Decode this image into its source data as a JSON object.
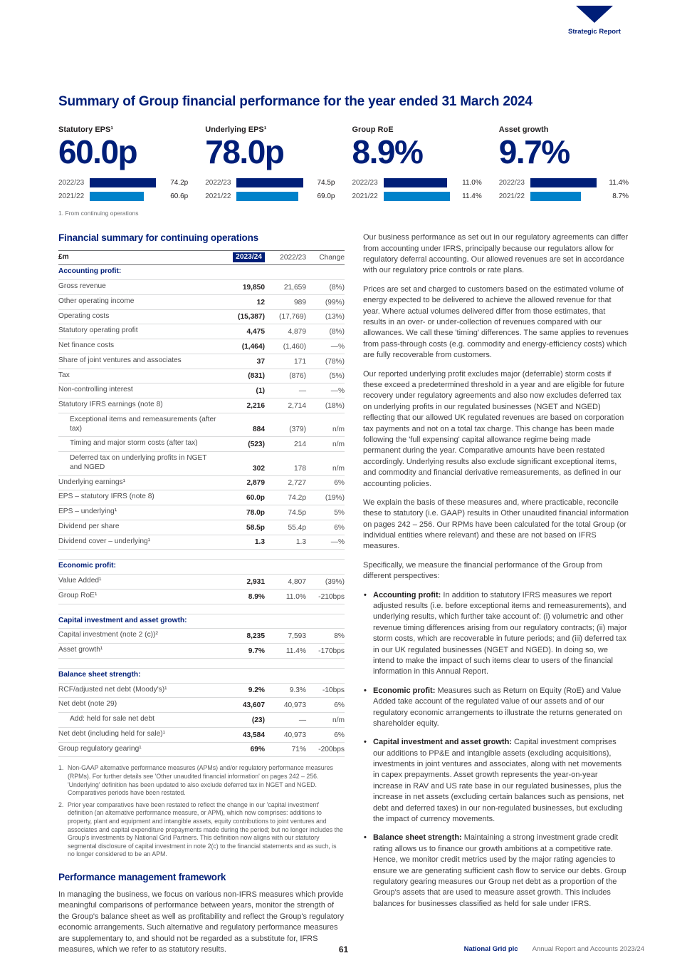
{
  "colors": {
    "navy": "#001e78",
    "bright_blue": "#0082ca",
    "body_text": "#3f3f41"
  },
  "brand": {
    "section": "Strategic Report"
  },
  "title": "Summary of Group financial performance for the year ended 31 March 2024",
  "kpis": [
    {
      "label": "Statutory EPS¹",
      "value": "60.0p",
      "bars": [
        {
          "year": "2022/23",
          "value": "74.2p",
          "pct": 100
        },
        {
          "year": "2021/22",
          "value": "60.6p",
          "pct": 82
        }
      ]
    },
    {
      "label": "Underlying EPS¹",
      "value": "78.0p",
      "bars": [
        {
          "year": "2022/23",
          "value": "74.5p",
          "pct": 100
        },
        {
          "year": "2021/22",
          "value": "69.0p",
          "pct": 93
        }
      ]
    },
    {
      "label": "Group RoE",
      "value": "8.9%",
      "bars": [
        {
          "year": "2022/23",
          "value": "11.0%",
          "pct": 96
        },
        {
          "year": "2021/22",
          "value": "11.4%",
          "pct": 100
        }
      ]
    },
    {
      "label": "Asset growth",
      "value": "9.7%",
      "bars": [
        {
          "year": "2022/23",
          "value": "11.4%",
          "pct": 100
        },
        {
          "year": "2021/22",
          "value": "8.7%",
          "pct": 76
        }
      ]
    }
  ],
  "kpi_footnote": "1.  From continuing operations",
  "table": {
    "heading": "Financial summary for continuing operations",
    "columns": {
      "unit": "£m",
      "c1": "2023/24",
      "c2": "2022/23",
      "c3": "Change"
    },
    "rows": [
      {
        "type": "section",
        "label": "Accounting profit:",
        "v1": "",
        "v2": "",
        "chg": ""
      },
      {
        "type": "row",
        "label": "Gross revenue",
        "v1": "19,850",
        "v2": "21,659",
        "chg": "(8%)"
      },
      {
        "type": "row",
        "label": "Other operating income",
        "v1": "12",
        "v2": "989",
        "chg": "(99%)"
      },
      {
        "type": "row",
        "label": "Operating costs",
        "v1": "(15,387)",
        "v2": "(17,769)",
        "chg": "(13%)"
      },
      {
        "type": "row",
        "label": "Statutory operating profit",
        "v1": "4,475",
        "v2": "4,879",
        "chg": "(8%)"
      },
      {
        "type": "row",
        "label": "Net finance costs",
        "v1": "(1,464)",
        "v2": "(1,460)",
        "chg": "—%"
      },
      {
        "type": "row",
        "label": "Share of joint ventures and associates",
        "v1": "37",
        "v2": "171",
        "chg": "(78%)"
      },
      {
        "type": "row",
        "label": "Tax",
        "v1": "(831)",
        "v2": "(876)",
        "chg": "(5%)"
      },
      {
        "type": "row",
        "label": "Non-controlling interest",
        "v1": "(1)",
        "v2": "—",
        "chg": "—%"
      },
      {
        "type": "row",
        "label": "Statutory IFRS earnings (note 8)",
        "v1": "2,216",
        "v2": "2,714",
        "chg": "(18%)"
      },
      {
        "type": "sub",
        "label": "Exceptional items and remeasurements (after tax)",
        "v1": "884",
        "v2": "(379)",
        "chg": "n/m"
      },
      {
        "type": "sub",
        "label": "Timing and major storm costs (after tax)",
        "v1": "(523)",
        "v2": "214",
        "chg": "n/m"
      },
      {
        "type": "sub",
        "label": "Deferred tax on underlying profits in NGET and NGED",
        "v1": "302",
        "v2": "178",
        "chg": "n/m"
      },
      {
        "type": "row",
        "label": "Underlying earnings¹",
        "v1": "2,879",
        "v2": "2,727",
        "chg": "6%"
      },
      {
        "type": "row",
        "label": "EPS – statutory IFRS (note 8)",
        "v1": "60.0p",
        "v2": "74.2p",
        "chg": "(19%)"
      },
      {
        "type": "row",
        "label": "EPS – underlying¹",
        "v1": "78.0p",
        "v2": "74.5p",
        "chg": "5%"
      },
      {
        "type": "row",
        "label": "Dividend per share",
        "v1": "58.5p",
        "v2": "55.4p",
        "chg": "6%"
      },
      {
        "type": "row",
        "label": "Dividend cover – underlying¹",
        "v1": "1.3",
        "v2": "1.3",
        "chg": "—%"
      },
      {
        "type": "spacer",
        "label": "",
        "v1": "",
        "v2": "",
        "chg": ""
      },
      {
        "type": "section",
        "label": "Economic profit:",
        "v1": "",
        "v2": "",
        "chg": ""
      },
      {
        "type": "row",
        "label": "Value Added¹",
        "v1": "2,931",
        "v2": "4,807",
        "chg": "(39%)"
      },
      {
        "type": "row",
        "label": "Group RoE¹",
        "v1": "8.9%",
        "v2": "11.0%",
        "chg": "-210bps"
      },
      {
        "type": "spacer",
        "label": "",
        "v1": "",
        "v2": "",
        "chg": ""
      },
      {
        "type": "section",
        "label": "Capital investment and asset growth:",
        "v1": "",
        "v2": "",
        "chg": ""
      },
      {
        "type": "row",
        "label": "Capital investment (note 2 (c))²",
        "v1": "8,235",
        "v2": "7,593",
        "chg": "8%"
      },
      {
        "type": "row",
        "label": "Asset growth¹",
        "v1": "9.7%",
        "v2": "11.4%",
        "chg": "-170bps"
      },
      {
        "type": "spacer",
        "label": "",
        "v1": "",
        "v2": "",
        "chg": ""
      },
      {
        "type": "section",
        "label": "Balance sheet strength:",
        "v1": "",
        "v2": "",
        "chg": ""
      },
      {
        "type": "row",
        "label": "RCF/adjusted net debt (Moody's)¹",
        "v1": "9.2%",
        "v2": "9.3%",
        "chg": "-10bps"
      },
      {
        "type": "row",
        "label": "Net debt (note 29)",
        "v1": "43,607",
        "v2": "40,973",
        "chg": "6%"
      },
      {
        "type": "sub",
        "label": "Add: held for sale net debt",
        "v1": "(23)",
        "v2": "—",
        "chg": "n/m"
      },
      {
        "type": "row",
        "label": "Net debt (including held for sale)¹",
        "v1": "43,584",
        "v2": "40,973",
        "chg": "6%"
      },
      {
        "type": "row",
        "label": "Group regulatory gearing¹",
        "v1": "69%",
        "v2": "71%",
        "chg": "-200bps"
      }
    ]
  },
  "footnotes": [
    {
      "num": "1.",
      "text": "Non-GAAP alternative performance measures (APMs) and/or regulatory performance measures (RPMs). For further details see 'Other unaudited financial information' on pages 242 – 256. 'Underlying' definition has been updated to also exclude deferred tax in NGET and NGED. Comparatives periods have been restated."
    },
    {
      "num": "2.",
      "text": "Prior year comparatives have been restated to reflect the change in our 'capital investment' definition (an alternative performance measure, or APM), which now comprises: additions to property, plant and equipment and intangible assets, equity contributions to joint ventures and associates and capital expenditure prepayments made during the period; but no longer includes the Group's investments by National Grid Partners. This definition now aligns with our statutory segmental disclosure of capital investment in note 2(c) to the financial statements and as such, is no longer considered to be an APM."
    }
  ],
  "framework": {
    "heading": "Performance management framework",
    "text": "In managing the business, we focus on various non-IFRS measures which provide meaningful comparisons of performance between years, monitor the strength of the Group's balance sheet as well as profitability and reflect the Group's regulatory economic arrangements. Such alternative and regulatory performance measures are supplementary to, and should not be regarded as a substitute for, IFRS measures, which we refer to as statutory results."
  },
  "right": {
    "paragraphs": [
      "Our business performance as set out in our regulatory agreements can differ from accounting under IFRS, principally because our regulators allow for regulatory deferral accounting. Our allowed revenues are set in accordance with our regulatory price controls or rate plans.",
      "Prices are set and charged to customers based on the estimated volume of energy expected to be delivered to achieve the allowed revenue for that year. Where actual volumes delivered differ from those estimates, that results in an over- or under-collection of revenues compared with our allowances. We call these 'timing' differences. The same applies to revenues from pass-through costs (e.g. commodity and energy-efficiency costs) which are fully recoverable from customers.",
      "Our reported underlying profit excludes major (deferrable) storm costs if these exceed a predetermined threshold in a year and are eligible for future recovery under regulatory agreements and also now excludes deferred tax on underlying profits in our regulated businesses (NGET and NGED) reflecting that our allowed UK regulated revenues are based on corporation tax payments and not on a total tax charge. This change has been made following the 'full expensing' capital allowance regime being made permanent during the year. Comparative amounts have been restated accordingly. Underlying results also exclude significant exceptional items, and commodity and financial derivative remeasurements, as defined in our accounting policies.",
      "We explain the basis of these measures and, where practicable, reconcile these to statutory (i.e. GAAP) results in Other unaudited financial information on pages 242 – 256. Our RPMs have been calculated for the total Group (or individual entities where relevant) and these are not based on IFRS measures.",
      "Specifically, we measure the financial performance of the Group from different perspectives:"
    ],
    "bullets": [
      {
        "lead": "Accounting profit:",
        "text": "In addition to statutory IFRS measures we report adjusted results (i.e. before exceptional items and remeasurements), and underlying results, which further take account of: (i) volumetric and other revenue timing differences arising from our regulatory contracts; (ii) major storm costs, which are recoverable in future periods; and (iii) deferred tax in our UK regulated businesses (NGET and NGED). In doing so, we intend to make the impact of such items clear to users of the financial information in this Annual Report."
      },
      {
        "lead": "Economic profit:",
        "text": "Measures such as Return on Equity (RoE) and Value Added take account of the regulated value of our assets and of our regulatory economic arrangements to illustrate the returns generated on shareholder equity."
      },
      {
        "lead": "Capital investment and asset growth:",
        "text": "Capital investment comprises our additions to PP&E and intangible assets (excluding acquisitions), investments in joint ventures and associates, along with net movements in capex prepayments. Asset growth represents the year-on-year increase in RAV and US rate base in our regulated businesses, plus the increase in net assets (excluding certain balances such as pensions, net debt and deferred taxes) in our non-regulated businesses, but excluding the impact of currency movements."
      },
      {
        "lead": "Balance sheet strength:",
        "text": "Maintaining a strong investment grade credit rating allows us to finance our growth ambitions at a competitive rate. Hence, we monitor credit metrics used by the major rating agencies to ensure we are generating sufficient cash flow to service our debts. Group regulatory gearing measures our Group net debt as a proportion of the Group's assets that are used to measure asset growth. This includes balances for businesses classified as held for sale under IFRS."
      }
    ]
  },
  "footer": {
    "page": "61",
    "company": "National Grid plc",
    "report": "Annual Report and Accounts 2023/24"
  }
}
